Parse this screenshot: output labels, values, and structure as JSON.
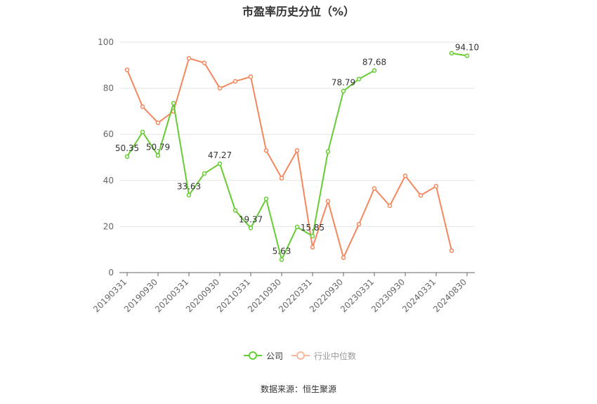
{
  "title": "市盈率历史分位（%）",
  "source": "数据来源：恒生聚源",
  "chart_data": {
    "type": "line",
    "x": [
      "20190331",
      "20190630",
      "20190930",
      "20191231",
      "20200331",
      "20200630",
      "20200930",
      "20201231",
      "20210331",
      "20210630",
      "20210930",
      "20211231",
      "20220331",
      "20220630",
      "20220930",
      "20221231",
      "20230331",
      "20230630",
      "20230930",
      "20231231",
      "20240331",
      "20240630",
      "20240830"
    ],
    "x_tick_labels": [
      "20190331",
      "20190930",
      "20200331",
      "20200930",
      "20210331",
      "20210930",
      "20220331",
      "20220930",
      "20230331",
      "20230930",
      "20240331",
      "20240830"
    ],
    "ylim": [
      0,
      100
    ],
    "y_ticks": [
      0,
      20,
      40,
      60,
      80,
      100
    ],
    "grid": true,
    "legend_position": "bottom",
    "series": [
      {
        "name": "公司",
        "color": "#66cc33",
        "values": [
          50.35,
          61.0,
          50.79,
          73.5,
          33.63,
          43.0,
          47.27,
          27.0,
          19.37,
          32.0,
          5.63,
          19.8,
          15.85,
          52.5,
          78.79,
          84.0,
          87.68,
          null,
          null,
          null,
          null,
          95.2,
          94.1
        ]
      },
      {
        "name": "行业中位数",
        "color": "#f4875d",
        "values": [
          88.0,
          72.0,
          65.0,
          70.0,
          93.0,
          91.0,
          80.0,
          83.0,
          85.0,
          53.0,
          41.0,
          53.0,
          11.0,
          31.0,
          6.5,
          21.0,
          36.5,
          29.0,
          42.0,
          33.5,
          37.5,
          9.5,
          null
        ]
      }
    ],
    "data_labels": [
      {
        "series": 0,
        "index": 0,
        "text": "50.35"
      },
      {
        "series": 0,
        "index": 2,
        "text": "50.79"
      },
      {
        "series": 0,
        "index": 4,
        "text": "33.63"
      },
      {
        "series": 0,
        "index": 6,
        "text": "47.27"
      },
      {
        "series": 0,
        "index": 8,
        "text": "19.37"
      },
      {
        "series": 0,
        "index": 10,
        "text": "5.63"
      },
      {
        "series": 0,
        "index": 12,
        "text": "15.85"
      },
      {
        "series": 0,
        "index": 14,
        "text": "78.79"
      },
      {
        "series": 0,
        "index": 16,
        "text": "87.68"
      },
      {
        "series": 0,
        "index": 22,
        "text": "94.10"
      }
    ]
  }
}
